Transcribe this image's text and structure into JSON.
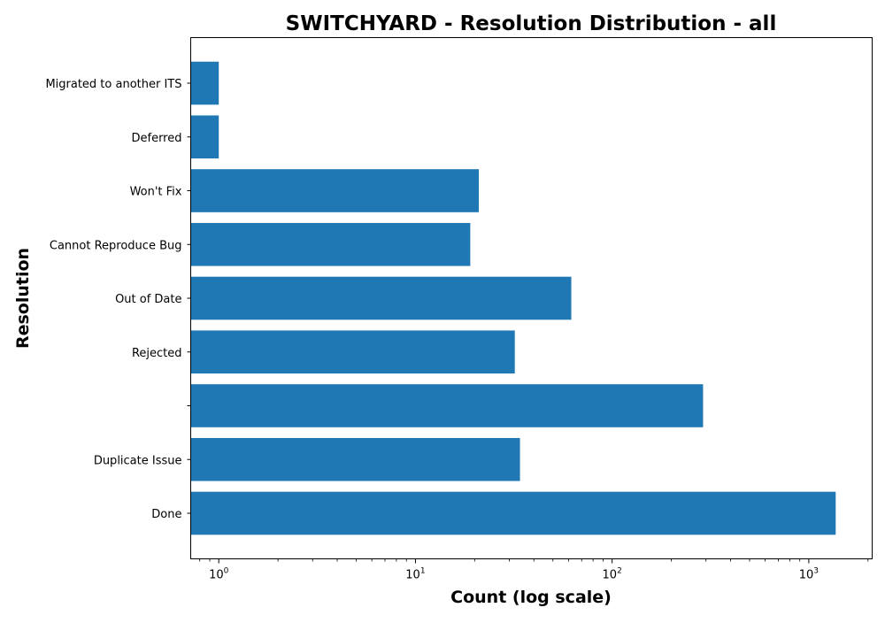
{
  "chart_data": {
    "type": "bar",
    "orientation": "horizontal",
    "title": "SWITCHYARD - Resolution Distribution - all",
    "xlabel": "Count (log scale)",
    "ylabel": "Resolution",
    "x_scale": "log",
    "xlim": [
      0.72,
      2100
    ],
    "x_ticks": [
      {
        "base": "10",
        "exp": "0",
        "value": 1
      },
      {
        "base": "10",
        "exp": "1",
        "value": 10
      },
      {
        "base": "10",
        "exp": "2",
        "value": 100
      },
      {
        "base": "10",
        "exp": "3",
        "value": 1000
      }
    ],
    "categories": [
      "Done",
      "Duplicate Issue",
      "",
      "Rejected",
      "Out of Date",
      "Cannot Reproduce Bug",
      "Won't Fix",
      "Deferred",
      "Migrated to another ITS"
    ],
    "values": [
      1370,
      34,
      290,
      32,
      62,
      19,
      21,
      1,
      1
    ],
    "bar_color": "#1f77b4",
    "grid": false,
    "legend": "none"
  }
}
